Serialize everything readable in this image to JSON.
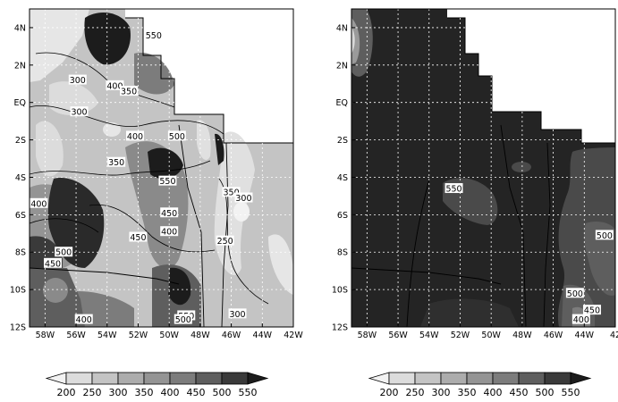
{
  "maps": [
    {
      "x_ticks": [
        "58W",
        "56W",
        "54W",
        "52W",
        "50W",
        "48W",
        "46W",
        "44W",
        "42W"
      ],
      "y_ticks": [
        "4N",
        "2N",
        "EQ",
        "2S",
        "4S",
        "6S",
        "8S",
        "10S",
        "12S"
      ],
      "contour_labels": [
        {
          "text": "550",
          "lon": -51.0,
          "lat": 3.6
        },
        {
          "text": "300",
          "lon": -55.9,
          "lat": 1.2
        },
        {
          "text": "400",
          "lon": -53.5,
          "lat": 0.9
        },
        {
          "text": "350",
          "lon": -52.6,
          "lat": 0.6
        },
        {
          "text": "300",
          "lon": -55.8,
          "lat": -0.5
        },
        {
          "text": "400",
          "lon": -52.2,
          "lat": -1.8
        },
        {
          "text": "500",
          "lon": -49.5,
          "lat": -1.8
        },
        {
          "text": "350",
          "lon": -53.4,
          "lat": -3.2
        },
        {
          "text": "550",
          "lon": -50.1,
          "lat": -4.2
        },
        {
          "text": "400",
          "lon": -58.4,
          "lat": -5.4
        },
        {
          "text": "350",
          "lon": -46.0,
          "lat": -4.8
        },
        {
          "text": "300",
          "lon": -45.2,
          "lat": -5.1
        },
        {
          "text": "450",
          "lon": -50.0,
          "lat": -5.9
        },
        {
          "text": "450",
          "lon": -52.0,
          "lat": -7.2
        },
        {
          "text": "400",
          "lon": -50.0,
          "lat": -6.9
        },
        {
          "text": "250",
          "lon": -46.4,
          "lat": -7.4
        },
        {
          "text": "500",
          "lon": -56.8,
          "lat": -8.0
        },
        {
          "text": "450",
          "lon": -57.5,
          "lat": -8.6
        },
        {
          "text": "550",
          "lon": -48.9,
          "lat": -11.4
        },
        {
          "text": "500",
          "lon": -49.1,
          "lat": -11.6
        },
        {
          "text": "400",
          "lon": -55.5,
          "lat": -11.6
        },
        {
          "text": "300",
          "lon": -45.6,
          "lat": -11.3
        }
      ]
    },
    {
      "x_ticks": [
        "58W",
        "56W",
        "54W",
        "52W",
        "50W",
        "48W",
        "46W",
        "44W",
        "42"
      ],
      "y_ticks": [
        "4N",
        "2N",
        "EQ",
        "2S",
        "4S",
        "6S",
        "8S",
        "10S",
        "12S"
      ],
      "contour_labels": [
        {
          "text": "550",
          "lon": -52.4,
          "lat": -4.6
        },
        {
          "text": "500",
          "lon": -42.7,
          "lat": -7.1
        },
        {
          "text": "500",
          "lon": -44.6,
          "lat": -10.2
        },
        {
          "text": "450",
          "lon": -43.5,
          "lat": -11.1
        },
        {
          "text": "400",
          "lon": -44.2,
          "lat": -11.6
        }
      ]
    }
  ],
  "colorbars": [
    {
      "labels": [
        "200",
        "250",
        "300",
        "350",
        "400",
        "450",
        "500",
        "550"
      ]
    },
    {
      "labels": [
        "200",
        "250",
        "300",
        "350",
        "400",
        "450",
        "500",
        "550"
      ]
    }
  ],
  "colors": {
    "levels": [
      "#f2f2f2",
      "#dcdcdc",
      "#c4c4c4",
      "#acacac",
      "#949494",
      "#7c7c7c",
      "#5e5e5e",
      "#3a3a3a",
      "#1c1c1c"
    ],
    "dark": "#242424",
    "ocean": "#ffffff"
  }
}
